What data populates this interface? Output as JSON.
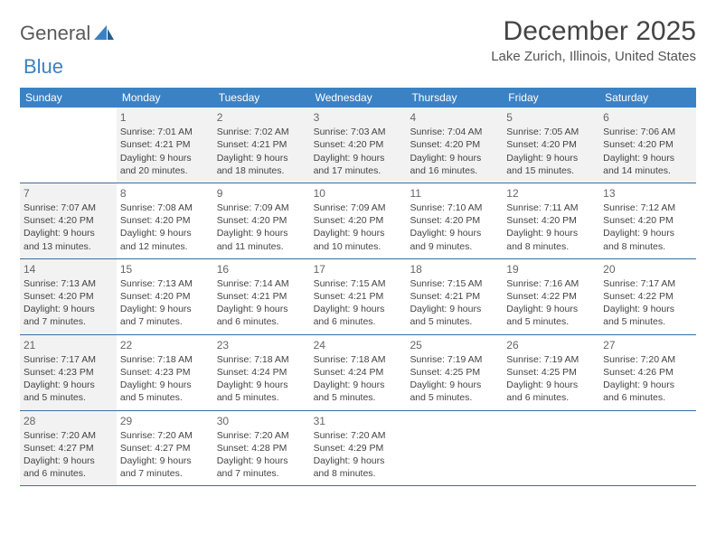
{
  "logo": {
    "part1": "General",
    "part2": "Blue"
  },
  "title": "December 2025",
  "location": "Lake Zurich, Illinois, United States",
  "colors": {
    "header_bg": "#3b82c4",
    "header_text": "#ffffff",
    "border": "#3b6fa0",
    "shaded_bg": "#f2f2f2",
    "text": "#444444",
    "daynum": "#666666"
  },
  "weekdays": [
    "Sunday",
    "Monday",
    "Tuesday",
    "Wednesday",
    "Thursday",
    "Friday",
    "Saturday"
  ],
  "weeks": [
    [
      {
        "num": "",
        "lines": [],
        "shaded": false
      },
      {
        "num": "1",
        "lines": [
          "Sunrise: 7:01 AM",
          "Sunset: 4:21 PM",
          "Daylight: 9 hours",
          "and 20 minutes."
        ],
        "shaded": true
      },
      {
        "num": "2",
        "lines": [
          "Sunrise: 7:02 AM",
          "Sunset: 4:21 PM",
          "Daylight: 9 hours",
          "and 18 minutes."
        ],
        "shaded": true
      },
      {
        "num": "3",
        "lines": [
          "Sunrise: 7:03 AM",
          "Sunset: 4:20 PM",
          "Daylight: 9 hours",
          "and 17 minutes."
        ],
        "shaded": true
      },
      {
        "num": "4",
        "lines": [
          "Sunrise: 7:04 AM",
          "Sunset: 4:20 PM",
          "Daylight: 9 hours",
          "and 16 minutes."
        ],
        "shaded": true
      },
      {
        "num": "5",
        "lines": [
          "Sunrise: 7:05 AM",
          "Sunset: 4:20 PM",
          "Daylight: 9 hours",
          "and 15 minutes."
        ],
        "shaded": true
      },
      {
        "num": "6",
        "lines": [
          "Sunrise: 7:06 AM",
          "Sunset: 4:20 PM",
          "Daylight: 9 hours",
          "and 14 minutes."
        ],
        "shaded": true
      }
    ],
    [
      {
        "num": "7",
        "lines": [
          "Sunrise: 7:07 AM",
          "Sunset: 4:20 PM",
          "Daylight: 9 hours",
          "and 13 minutes."
        ],
        "shaded": true
      },
      {
        "num": "8",
        "lines": [
          "Sunrise: 7:08 AM",
          "Sunset: 4:20 PM",
          "Daylight: 9 hours",
          "and 12 minutes."
        ],
        "shaded": false
      },
      {
        "num": "9",
        "lines": [
          "Sunrise: 7:09 AM",
          "Sunset: 4:20 PM",
          "Daylight: 9 hours",
          "and 11 minutes."
        ],
        "shaded": false
      },
      {
        "num": "10",
        "lines": [
          "Sunrise: 7:09 AM",
          "Sunset: 4:20 PM",
          "Daylight: 9 hours",
          "and 10 minutes."
        ],
        "shaded": false
      },
      {
        "num": "11",
        "lines": [
          "Sunrise: 7:10 AM",
          "Sunset: 4:20 PM",
          "Daylight: 9 hours",
          "and 9 minutes."
        ],
        "shaded": false
      },
      {
        "num": "12",
        "lines": [
          "Sunrise: 7:11 AM",
          "Sunset: 4:20 PM",
          "Daylight: 9 hours",
          "and 8 minutes."
        ],
        "shaded": false
      },
      {
        "num": "13",
        "lines": [
          "Sunrise: 7:12 AM",
          "Sunset: 4:20 PM",
          "Daylight: 9 hours",
          "and 8 minutes."
        ],
        "shaded": false
      }
    ],
    [
      {
        "num": "14",
        "lines": [
          "Sunrise: 7:13 AM",
          "Sunset: 4:20 PM",
          "Daylight: 9 hours",
          "and 7 minutes."
        ],
        "shaded": true
      },
      {
        "num": "15",
        "lines": [
          "Sunrise: 7:13 AM",
          "Sunset: 4:20 PM",
          "Daylight: 9 hours",
          "and 7 minutes."
        ],
        "shaded": false
      },
      {
        "num": "16",
        "lines": [
          "Sunrise: 7:14 AM",
          "Sunset: 4:21 PM",
          "Daylight: 9 hours",
          "and 6 minutes."
        ],
        "shaded": false
      },
      {
        "num": "17",
        "lines": [
          "Sunrise: 7:15 AM",
          "Sunset: 4:21 PM",
          "Daylight: 9 hours",
          "and 6 minutes."
        ],
        "shaded": false
      },
      {
        "num": "18",
        "lines": [
          "Sunrise: 7:15 AM",
          "Sunset: 4:21 PM",
          "Daylight: 9 hours",
          "and 5 minutes."
        ],
        "shaded": false
      },
      {
        "num": "19",
        "lines": [
          "Sunrise: 7:16 AM",
          "Sunset: 4:22 PM",
          "Daylight: 9 hours",
          "and 5 minutes."
        ],
        "shaded": false
      },
      {
        "num": "20",
        "lines": [
          "Sunrise: 7:17 AM",
          "Sunset: 4:22 PM",
          "Daylight: 9 hours",
          "and 5 minutes."
        ],
        "shaded": false
      }
    ],
    [
      {
        "num": "21",
        "lines": [
          "Sunrise: 7:17 AM",
          "Sunset: 4:23 PM",
          "Daylight: 9 hours",
          "and 5 minutes."
        ],
        "shaded": true
      },
      {
        "num": "22",
        "lines": [
          "Sunrise: 7:18 AM",
          "Sunset: 4:23 PM",
          "Daylight: 9 hours",
          "and 5 minutes."
        ],
        "shaded": false
      },
      {
        "num": "23",
        "lines": [
          "Sunrise: 7:18 AM",
          "Sunset: 4:24 PM",
          "Daylight: 9 hours",
          "and 5 minutes."
        ],
        "shaded": false
      },
      {
        "num": "24",
        "lines": [
          "Sunrise: 7:18 AM",
          "Sunset: 4:24 PM",
          "Daylight: 9 hours",
          "and 5 minutes."
        ],
        "shaded": false
      },
      {
        "num": "25",
        "lines": [
          "Sunrise: 7:19 AM",
          "Sunset: 4:25 PM",
          "Daylight: 9 hours",
          "and 5 minutes."
        ],
        "shaded": false
      },
      {
        "num": "26",
        "lines": [
          "Sunrise: 7:19 AM",
          "Sunset: 4:25 PM",
          "Daylight: 9 hours",
          "and 6 minutes."
        ],
        "shaded": false
      },
      {
        "num": "27",
        "lines": [
          "Sunrise: 7:20 AM",
          "Sunset: 4:26 PM",
          "Daylight: 9 hours",
          "and 6 minutes."
        ],
        "shaded": false
      }
    ],
    [
      {
        "num": "28",
        "lines": [
          "Sunrise: 7:20 AM",
          "Sunset: 4:27 PM",
          "Daylight: 9 hours",
          "and 6 minutes."
        ],
        "shaded": true
      },
      {
        "num": "29",
        "lines": [
          "Sunrise: 7:20 AM",
          "Sunset: 4:27 PM",
          "Daylight: 9 hours",
          "and 7 minutes."
        ],
        "shaded": false
      },
      {
        "num": "30",
        "lines": [
          "Sunrise: 7:20 AM",
          "Sunset: 4:28 PM",
          "Daylight: 9 hours",
          "and 7 minutes."
        ],
        "shaded": false
      },
      {
        "num": "31",
        "lines": [
          "Sunrise: 7:20 AM",
          "Sunset: 4:29 PM",
          "Daylight: 9 hours",
          "and 8 minutes."
        ],
        "shaded": false
      },
      {
        "num": "",
        "lines": [],
        "shaded": false
      },
      {
        "num": "",
        "lines": [],
        "shaded": false
      },
      {
        "num": "",
        "lines": [],
        "shaded": false
      }
    ]
  ]
}
